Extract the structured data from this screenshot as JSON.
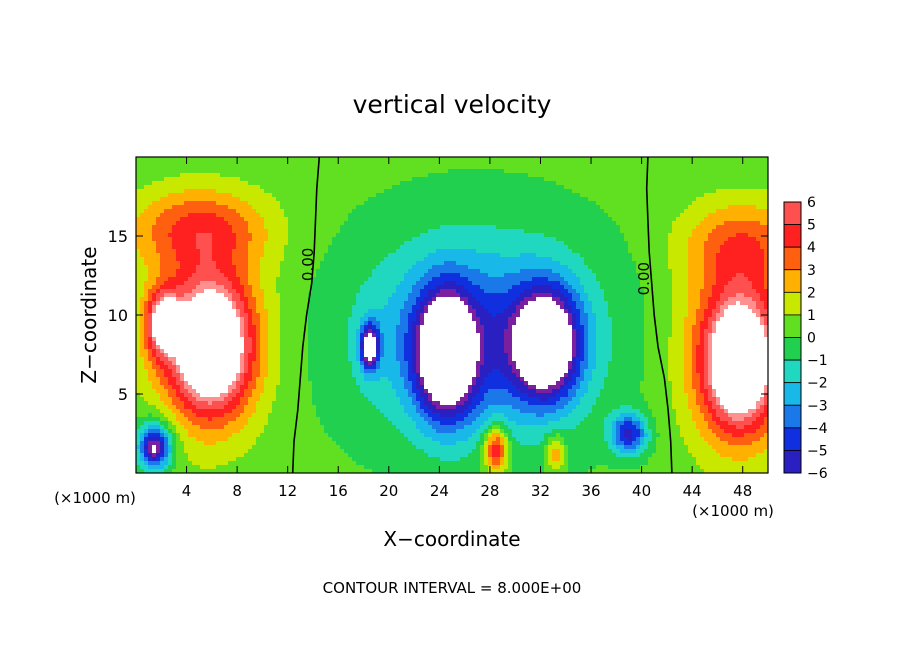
{
  "chart_data": {
    "type": "heatmap",
    "title": "vertical velocity",
    "xlabel": "X−coordinate",
    "ylabel": "Z−coordinate",
    "x_unit_left": "(×1000 m)",
    "x_unit_right": "(×1000 m)",
    "footer": "CONTOUR INTERVAL = 8.000E+00",
    "xlim": [
      0,
      50
    ],
    "ylim": [
      0,
      20
    ],
    "x_ticks": [
      4,
      8,
      12,
      16,
      20,
      24,
      28,
      32,
      36,
      40,
      44,
      48
    ],
    "x_tick_labels": [
      "4",
      "8",
      "12",
      "16",
      "20",
      "24",
      "28",
      "32",
      "36",
      "40",
      "44",
      "48"
    ],
    "y_ticks": [
      5,
      10,
      15
    ],
    "y_tick_labels": [
      "5",
      "10",
      "15"
    ],
    "contour_labels": [
      {
        "text": "0.00",
        "x": 14.0,
        "y": 13.2
      },
      {
        "text": "0.00",
        "x": 40.6,
        "y": 12.3
      }
    ],
    "zero_contours": [
      {
        "name": "left",
        "points": [
          [
            14.5,
            20
          ],
          [
            14.3,
            18
          ],
          [
            14.2,
            16
          ],
          [
            14.1,
            14
          ],
          [
            13.9,
            12
          ],
          [
            13.5,
            10
          ],
          [
            13.2,
            8
          ],
          [
            13.0,
            6
          ],
          [
            12.8,
            4
          ],
          [
            12.5,
            2
          ],
          [
            12.4,
            0
          ]
        ]
      },
      {
        "name": "right",
        "points": [
          [
            40.5,
            20
          ],
          [
            40.4,
            18
          ],
          [
            40.5,
            16
          ],
          [
            40.6,
            14
          ],
          [
            40.8,
            12
          ],
          [
            41.0,
            10
          ],
          [
            41.3,
            8
          ],
          [
            41.8,
            6
          ],
          [
            42.1,
            4
          ],
          [
            42.3,
            2
          ],
          [
            42.4,
            0
          ]
        ]
      }
    ],
    "colorbar": {
      "levels": [
        -6,
        -5,
        -4,
        -3,
        -2,
        -1,
        0,
        1,
        2,
        3,
        4,
        5,
        6
      ],
      "labels": [
        "−6",
        "−5",
        "−4",
        "−3",
        "−2",
        "−1",
        "0",
        "1",
        "2",
        "3",
        "4",
        "5",
        "6"
      ],
      "colors": [
        "#7a1fa0",
        "#2a1fc0",
        "#1030e0",
        "#1a78e8",
        "#18b8e8",
        "#20d8c0",
        "#22d050",
        "#60e020",
        "#c8e800",
        "#ffb000",
        "#ff6010",
        "#ff2020",
        "#ff5050",
        "#ff9090"
      ]
    },
    "features": [
      {
        "name": "background",
        "cx": 25,
        "cy": 10,
        "rx": 100,
        "ry": 100,
        "value": 0.3
      },
      {
        "name": "upper-left-warm-band",
        "cx": 5,
        "cy": 15.5,
        "rx": 7,
        "ry": 3.2,
        "value": 3.5
      },
      {
        "name": "left-updraft",
        "cx": 5.5,
        "cy": 8.5,
        "rx": 6,
        "ry": 7.5,
        "value": 4.0
      },
      {
        "name": "left-updraft-core",
        "cx": 6,
        "cy": 8.0,
        "rx": 3.6,
        "ry": 4.8,
        "value": 8.0
      },
      {
        "name": "left-updraft-core-2",
        "cx": 2.2,
        "cy": 9.5,
        "rx": 1.6,
        "ry": 2.4,
        "value": 7.0
      },
      {
        "name": "left-bottom-downdraft",
        "cx": 1.5,
        "cy": 1.6,
        "rx": 1.5,
        "ry": 1.6,
        "value": -6.5
      },
      {
        "name": "left-bottom-downdraft-ring",
        "cx": 1.5,
        "cy": 2.2,
        "rx": 2.4,
        "ry": 2.6,
        "value": -1.5
      },
      {
        "name": "central-downdraft-broad",
        "cx": 27,
        "cy": 9.0,
        "rx": 12.5,
        "ry": 8.5,
        "value": -2.8
      },
      {
        "name": "central-downdraft-deep",
        "cx": 27,
        "cy": 8.0,
        "rx": 9.5,
        "ry": 6.5,
        "value": -2.2
      },
      {
        "name": "central-downdraft-core-left",
        "cx": 24.5,
        "cy": 7.5,
        "rx": 2.8,
        "ry": 4.8,
        "value": -9.0
      },
      {
        "name": "central-downdraft-core-right",
        "cx": 32.5,
        "cy": 8.2,
        "rx": 3.2,
        "ry": 4.3,
        "value": -9.0
      },
      {
        "name": "central-downdraft-small",
        "cx": 18.5,
        "cy": 8.0,
        "rx": 0.9,
        "ry": 1.8,
        "value": -8.0
      },
      {
        "name": "central-bottom-updraft",
        "cx": 28.5,
        "cy": 1.5,
        "rx": 1.2,
        "ry": 1.8,
        "value": 5.5
      },
      {
        "name": "central-bottom-updraft-2",
        "cx": 33.2,
        "cy": 1.3,
        "rx": 0.9,
        "ry": 1.5,
        "value": 3.0
      },
      {
        "name": "lower-right-downdraft",
        "cx": 39,
        "cy": 2.5,
        "rx": 1.8,
        "ry": 1.6,
        "value": -5.5
      },
      {
        "name": "upper-right-warm-band",
        "cx": 48,
        "cy": 14.5,
        "rx": 6,
        "ry": 3.5,
        "value": 3.0
      },
      {
        "name": "right-updraft",
        "cx": 47.5,
        "cy": 7.5,
        "rx": 5.5,
        "ry": 7.5,
        "value": 4.2
      },
      {
        "name": "right-updraft-core",
        "cx": 47.8,
        "cy": 7.0,
        "rx": 3.2,
        "ry": 4.8,
        "value": 8.0
      }
    ]
  }
}
